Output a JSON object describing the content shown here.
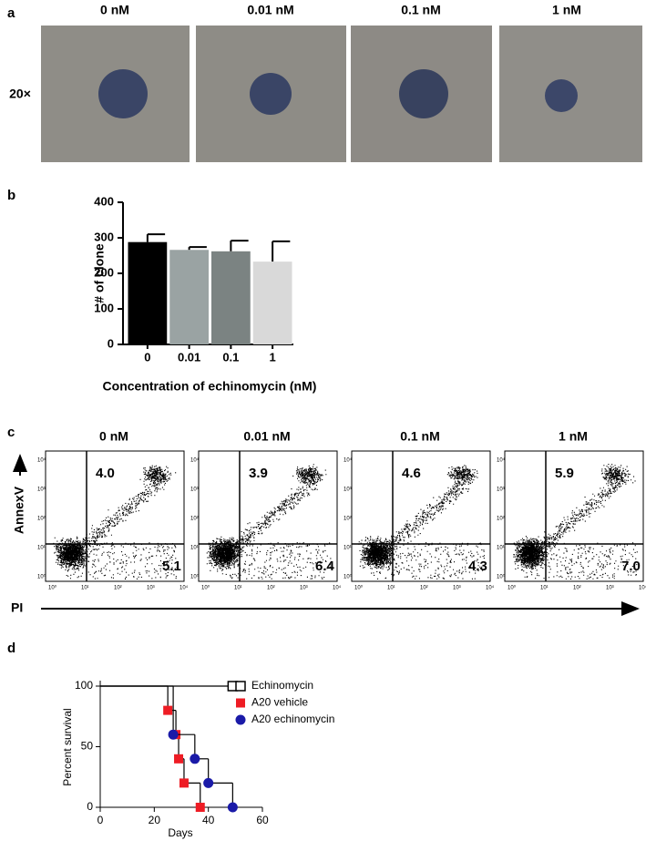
{
  "panel_a": {
    "letter": "a",
    "magnification": "20×",
    "conditions": [
      "0 nM",
      "0.01 nM",
      "0.1 nM",
      "1 nM"
    ]
  },
  "panel_b": {
    "letter": "b"
  },
  "panel_c": {
    "letter": "c",
    "y_label": "AnnexV",
    "x_label": "PI",
    "axis_ticks": [
      "10⁰",
      "10¹",
      "10²",
      "10³",
      "10⁴"
    ],
    "plots": [
      {
        "condition": "0 nM",
        "upper_right": "4.0",
        "lower_right": "5.1"
      },
      {
        "condition": "0.01 nM",
        "upper_right": "3.9",
        "lower_right": "6.4"
      },
      {
        "condition": "0.1 nM",
        "upper_right": "4.6",
        "lower_right": "4.3"
      },
      {
        "condition": "1 nM",
        "upper_right": "5.9",
        "lower_right": "7.0"
      }
    ]
  },
  "panel_d": {
    "letter": "d"
  },
  "chart_data": [
    {
      "type": "bar",
      "y_label": "# of clone",
      "x_label": "Concentration of echinomycin (nM)",
      "categories": [
        "0",
        "0.01",
        "0.1",
        "1"
      ],
      "values": [
        288,
        266,
        262,
        233
      ],
      "errors": [
        22,
        8,
        30,
        57
      ],
      "colors": [
        "#000000",
        "#9aa3a3",
        "#7b8382",
        "#d9d9d9"
      ],
      "ylim": [
        0,
        400
      ],
      "yticks": [
        0,
        100,
        200,
        300,
        400
      ]
    },
    {
      "type": "line",
      "y_label": "Percent survival",
      "x_label": "Days",
      "xlim": [
        0,
        60
      ],
      "xticks": [
        0,
        20,
        40,
        60
      ],
      "ylim": [
        0,
        100
      ],
      "yticks": [
        0,
        50,
        100
      ],
      "legend": "right",
      "series": [
        {
          "name": "Echinomycin",
          "color": "#000000",
          "marker": "square-open",
          "x": [
            0,
            49
          ],
          "values": [
            100,
            100
          ]
        },
        {
          "name": "A20 vehicle",
          "color": "#ee1c24",
          "marker": "square",
          "x": [
            0,
            25,
            28,
            29,
            31,
            37
          ],
          "values": [
            100,
            80,
            60,
            40,
            20,
            0
          ]
        },
        {
          "name": "A20 echinomycin",
          "color": "#1a1aa8",
          "marker": "circle",
          "x": [
            0,
            27,
            35,
            40,
            49
          ],
          "values": [
            100,
            60,
            40,
            20,
            0
          ]
        }
      ]
    }
  ]
}
